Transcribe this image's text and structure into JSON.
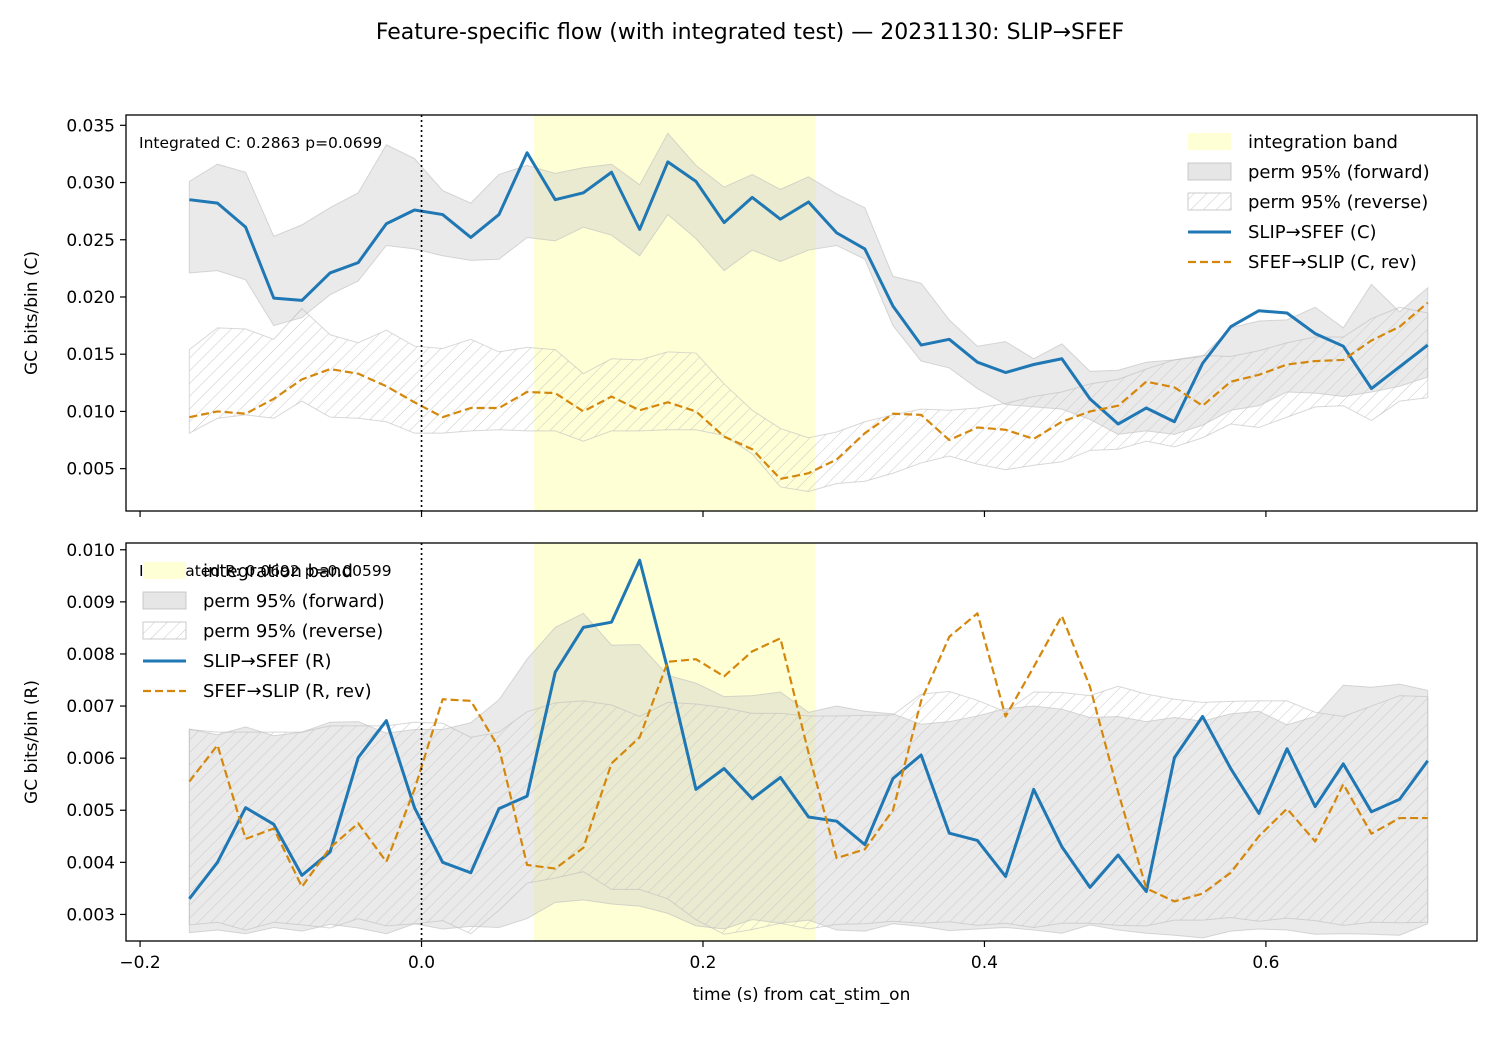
{
  "figure_title": "Feature-specific flow (with integrated test) — 20231130: SLIP→SFEF",
  "colors": {
    "forward_line": "#1f77b4",
    "reverse_line": "#d4870b",
    "band": "#ffffd6",
    "perm_forward_fill": "#d0d0d0",
    "perm_reverse_hatch": "#c8c8c8",
    "stim_line": "#000000"
  },
  "chart_data": [
    {
      "type": "line",
      "panel": "top",
      "annotation": "Integrated C: 0.2863  p=0.0699",
      "xlabel": "",
      "ylabel": "GC bits/bin (C)",
      "xlim": [
        -0.21,
        0.75
      ],
      "ylim": [
        0.0013,
        0.0359
      ],
      "xticks": [
        -0.2,
        0.0,
        0.2,
        0.4,
        0.6
      ],
      "xtick_labels": [
        "",
        "",
        "",
        "",
        ""
      ],
      "yticks": [
        0.005,
        0.01,
        0.015,
        0.02,
        0.025,
        0.03,
        0.035
      ],
      "ytick_labels": [
        "0.005",
        "0.010",
        "0.015",
        "0.020",
        "0.025",
        "0.030",
        "0.035"
      ],
      "stim_onset_x": 0.0,
      "integration_band": [
        0.08,
        0.28
      ],
      "legend_position": "top-right",
      "legend": [
        "integration band",
        "perm 95% (forward)",
        "perm 95% (reverse)",
        "SLIP→SFEF (C)",
        "SFEF→SLIP (C, rev)"
      ],
      "x": [
        -0.165,
        -0.145,
        -0.125,
        -0.105,
        -0.085,
        -0.065,
        -0.045,
        -0.025,
        -0.005,
        0.015,
        0.035,
        0.055,
        0.075,
        0.095,
        0.115,
        0.135,
        0.155,
        0.175,
        0.195,
        0.215,
        0.235,
        0.255,
        0.275,
        0.295,
        0.315,
        0.335,
        0.355,
        0.375,
        0.395,
        0.415,
        0.435,
        0.455,
        0.475,
        0.495,
        0.515,
        0.535,
        0.555,
        0.575,
        0.595,
        0.615,
        0.635,
        0.655,
        0.675,
        0.695,
        0.715
      ],
      "series": [
        {
          "name": "SLIP→SFEF (C)",
          "style": "solid",
          "values": [
            0.0285,
            0.0282,
            0.0261,
            0.0199,
            0.0197,
            0.0221,
            0.023,
            0.0264,
            0.0276,
            0.0272,
            0.0252,
            0.0272,
            0.0326,
            0.0285,
            0.0291,
            0.0309,
            0.0259,
            0.0318,
            0.0301,
            0.0265,
            0.0287,
            0.0268,
            0.0283,
            0.0256,
            0.0242,
            0.0192,
            0.0158,
            0.0163,
            0.0143,
            0.0134,
            0.0141,
            0.0146,
            0.0111,
            0.0089,
            0.0103,
            0.0091,
            0.0142,
            0.0174,
            0.0188,
            0.0186,
            0.0168,
            0.0157,
            0.012,
            0.0139,
            0.0158
          ]
        },
        {
          "name": "SFEF→SLIP (C, rev)",
          "style": "dashed",
          "values": [
            0.0095,
            0.01,
            0.0098,
            0.0111,
            0.0128,
            0.0137,
            0.0133,
            0.0122,
            0.0108,
            0.0095,
            0.0103,
            0.0103,
            0.0117,
            0.0116,
            0.01,
            0.0113,
            0.0101,
            0.0108,
            0.01,
            0.0078,
            0.0067,
            0.0041,
            0.0046,
            0.0058,
            0.0081,
            0.0098,
            0.0097,
            0.0075,
            0.0086,
            0.0084,
            0.0076,
            0.0091,
            0.01,
            0.0105,
            0.0126,
            0.0121,
            0.0105,
            0.0126,
            0.0132,
            0.0141,
            0.0144,
            0.0145,
            0.0162,
            0.0174,
            0.0195
          ]
        }
      ],
      "perm_forward": {
        "lower": [
          0.0221,
          0.0223,
          0.0215,
          0.0175,
          0.0182,
          0.0202,
          0.0214,
          0.0245,
          0.0242,
          0.0236,
          0.0232,
          0.0233,
          0.0252,
          0.0249,
          0.0261,
          0.0254,
          0.0236,
          0.0272,
          0.0251,
          0.0223,
          0.0241,
          0.0231,
          0.0241,
          0.0245,
          0.0233,
          0.0175,
          0.0144,
          0.0138,
          0.012,
          0.0106,
          0.0104,
          0.0102,
          0.0093,
          0.008,
          0.0083,
          0.008,
          0.0088,
          0.0101,
          0.0105,
          0.0117,
          0.0116,
          0.0113,
          0.0117,
          0.0122,
          0.013
        ],
        "upper": [
          0.0301,
          0.0316,
          0.0309,
          0.0253,
          0.0263,
          0.0278,
          0.0291,
          0.0333,
          0.0321,
          0.0293,
          0.0282,
          0.0307,
          0.0315,
          0.0308,
          0.0313,
          0.0316,
          0.0298,
          0.0343,
          0.0315,
          0.0296,
          0.0307,
          0.0294,
          0.0305,
          0.029,
          0.0278,
          0.0218,
          0.0212,
          0.018,
          0.0157,
          0.0161,
          0.0146,
          0.0159,
          0.0135,
          0.0136,
          0.0143,
          0.0145,
          0.0148,
          0.0173,
          0.0179,
          0.018,
          0.0191,
          0.0173,
          0.0211,
          0.0187,
          0.0208
        ]
      },
      "perm_reverse": {
        "lower": [
          0.0081,
          0.0094,
          0.0097,
          0.0094,
          0.0109,
          0.0095,
          0.0094,
          0.0091,
          0.0081,
          0.0081,
          0.0083,
          0.0084,
          0.0083,
          0.0083,
          0.0074,
          0.0083,
          0.0083,
          0.0084,
          0.0084,
          0.0079,
          0.0063,
          0.0034,
          0.003,
          0.0037,
          0.0039,
          0.0046,
          0.0055,
          0.0061,
          0.0054,
          0.0049,
          0.0053,
          0.0056,
          0.0066,
          0.0067,
          0.0074,
          0.0069,
          0.0077,
          0.0089,
          0.0086,
          0.0095,
          0.0104,
          0.0105,
          0.0092,
          0.0109,
          0.0112
        ],
        "upper": [
          0.0154,
          0.0173,
          0.0172,
          0.0163,
          0.019,
          0.0167,
          0.016,
          0.0171,
          0.0157,
          0.0155,
          0.0163,
          0.0152,
          0.0156,
          0.0154,
          0.0133,
          0.0146,
          0.0145,
          0.0152,
          0.0151,
          0.0124,
          0.0101,
          0.0085,
          0.0077,
          0.0082,
          0.0091,
          0.0097,
          0.0102,
          0.0101,
          0.0103,
          0.0107,
          0.0113,
          0.0117,
          0.0124,
          0.0128,
          0.0137,
          0.0145,
          0.0149,
          0.0148,
          0.0153,
          0.016,
          0.0165,
          0.0165,
          0.0181,
          0.0191,
          0.0186
        ]
      }
    },
    {
      "type": "line",
      "panel": "bottom",
      "annotation": "Integrated R: 0.0692  p=0.00599",
      "xlabel": "time (s) from cat_stim_on",
      "ylabel": "GC bits/bin (R)",
      "xlim": [
        -0.21,
        0.75
      ],
      "ylim": [
        0.00249,
        0.01013
      ],
      "xticks": [
        -0.2,
        0.0,
        0.2,
        0.4,
        0.6
      ],
      "xtick_labels": [
        "−0.2",
        "0.0",
        "0.2",
        "0.4",
        "0.6"
      ],
      "yticks": [
        0.003,
        0.004,
        0.005,
        0.006,
        0.007,
        0.008,
        0.009,
        0.01
      ],
      "ytick_labels": [
        "0.003",
        "0.004",
        "0.005",
        "0.006",
        "0.007",
        "0.008",
        "0.009",
        "0.010"
      ],
      "stim_onset_x": 0.0,
      "integration_band": [
        0.08,
        0.28
      ],
      "legend_position": "top-left",
      "legend": [
        "integration band",
        "perm 95% (forward)",
        "perm 95% (reverse)",
        "SLIP→SFEF (R)",
        "SFEF→SLIP (R, rev)"
      ],
      "x": [
        -0.165,
        -0.145,
        -0.125,
        -0.105,
        -0.085,
        -0.065,
        -0.045,
        -0.025,
        -0.005,
        0.015,
        0.035,
        0.055,
        0.075,
        0.095,
        0.115,
        0.135,
        0.155,
        0.175,
        0.195,
        0.215,
        0.235,
        0.255,
        0.275,
        0.295,
        0.315,
        0.335,
        0.355,
        0.375,
        0.395,
        0.415,
        0.435,
        0.455,
        0.475,
        0.495,
        0.515,
        0.535,
        0.555,
        0.575,
        0.595,
        0.615,
        0.635,
        0.655,
        0.675,
        0.695,
        0.715
      ],
      "series": [
        {
          "name": "SLIP→SFEF (R)",
          "style": "solid",
          "values": [
            0.0033,
            0.004,
            0.00505,
            0.00473,
            0.00375,
            0.0042,
            0.00601,
            0.00672,
            0.00505,
            0.004,
            0.0038,
            0.00503,
            0.00527,
            0.00765,
            0.00851,
            0.00861,
            0.0098,
            0.0077,
            0.0054,
            0.0058,
            0.00522,
            0.00563,
            0.00487,
            0.00479,
            0.00434,
            0.00561,
            0.00606,
            0.00456,
            0.00442,
            0.00373,
            0.0054,
            0.0043,
            0.00352,
            0.00414,
            0.00344,
            0.00601,
            0.0068,
            0.0058,
            0.00494,
            0.00618,
            0.00507,
            0.00589,
            0.00497,
            0.00521,
            0.00595
          ]
        },
        {
          "name": "SFEF→SLIP (R, rev)",
          "style": "dashed",
          "values": [
            0.00555,
            0.00625,
            0.00445,
            0.00465,
            0.00353,
            0.00428,
            0.00475,
            0.00401,
            0.0054,
            0.00713,
            0.0071,
            0.0062,
            0.00395,
            0.00388,
            0.00428,
            0.0059,
            0.0064,
            0.00785,
            0.0079,
            0.00757,
            0.00805,
            0.0083,
            0.0061,
            0.00408,
            0.00425,
            0.005,
            0.0071,
            0.00833,
            0.00878,
            0.0068,
            0.00775,
            0.00873,
            0.00737,
            0.00535,
            0.0035,
            0.00325,
            0.0034,
            0.0038,
            0.0045,
            0.00503,
            0.0044,
            0.0055,
            0.00455,
            0.00485,
            0.00485
          ]
        }
      ],
      "perm_forward": {
        "lower": [
          0.00265,
          0.0027,
          0.00263,
          0.00275,
          0.00268,
          0.00281,
          0.00274,
          0.00263,
          0.00282,
          0.00272,
          0.00277,
          0.00275,
          0.00292,
          0.00323,
          0.00328,
          0.0032,
          0.00316,
          0.00302,
          0.00278,
          0.00272,
          0.0029,
          0.00283,
          0.00289,
          0.0027,
          0.00268,
          0.00282,
          0.00277,
          0.00269,
          0.00272,
          0.00275,
          0.0027,
          0.00264,
          0.0028,
          0.0027,
          0.00264,
          0.0026,
          0.00255,
          0.00268,
          0.00272,
          0.0027,
          0.00262,
          0.00263,
          0.00262,
          0.0026,
          0.00282
        ],
        "upper": [
          0.00656,
          0.00645,
          0.0066,
          0.00643,
          0.0065,
          0.00669,
          0.0067,
          0.00648,
          0.00655,
          0.00655,
          0.00668,
          0.00712,
          0.0079,
          0.00851,
          0.00878,
          0.00817,
          0.00818,
          0.00759,
          0.00744,
          0.00718,
          0.0072,
          0.00727,
          0.00688,
          0.007,
          0.0069,
          0.00685,
          0.00665,
          0.0067,
          0.00681,
          0.00695,
          0.007,
          0.00694,
          0.00678,
          0.0068,
          0.0067,
          0.00678,
          0.00671,
          0.00685,
          0.0069,
          0.00664,
          0.0068,
          0.0074,
          0.00736,
          0.00742,
          0.0073
        ]
      },
      "perm_reverse": {
        "lower": [
          0.0028,
          0.00285,
          0.0027,
          0.00285,
          0.0028,
          0.00274,
          0.00292,
          0.00278,
          0.00282,
          0.00288,
          0.00263,
          0.00308,
          0.0036,
          0.0037,
          0.00382,
          0.00348,
          0.00348,
          0.0033,
          0.0029,
          0.00262,
          0.00271,
          0.00283,
          0.00272,
          0.00281,
          0.00282,
          0.00287,
          0.00283,
          0.00286,
          0.00279,
          0.00283,
          0.00275,
          0.00283,
          0.00283,
          0.00279,
          0.00278,
          0.00289,
          0.00289,
          0.00294,
          0.00287,
          0.00293,
          0.00288,
          0.00279,
          0.00285,
          0.00284,
          0.00285
        ],
        "upper": [
          0.00655,
          0.0065,
          0.0065,
          0.0065,
          0.0065,
          0.00662,
          0.00662,
          0.00662,
          0.00669,
          0.00667,
          0.0064,
          0.0065,
          0.00689,
          0.00706,
          0.0071,
          0.00702,
          0.0068,
          0.00707,
          0.00704,
          0.00697,
          0.00686,
          0.00686,
          0.00681,
          0.00681,
          0.00682,
          0.00683,
          0.00723,
          0.00728,
          0.00711,
          0.00689,
          0.00727,
          0.00726,
          0.0072,
          0.00738,
          0.00723,
          0.00713,
          0.00707,
          0.00709,
          0.0071,
          0.0071,
          0.00688,
          0.0068,
          0.007,
          0.0072,
          0.00718
        ]
      }
    }
  ]
}
